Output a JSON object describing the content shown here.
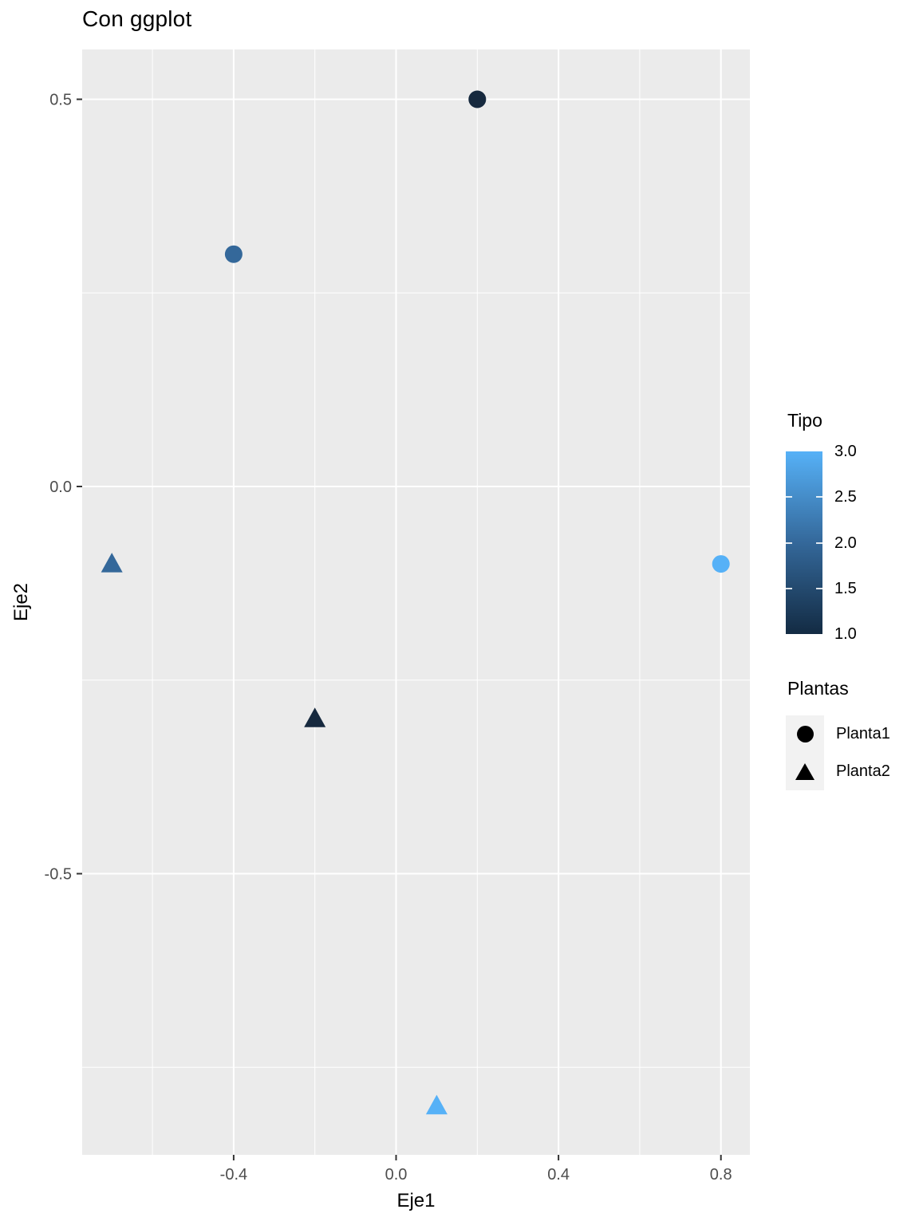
{
  "title": "Con ggplot",
  "axes": {
    "x_label": "Eje1",
    "y_label": "Eje2",
    "x_ticks": [
      -0.4,
      0.0,
      0.4,
      0.8
    ],
    "x_tick_labels": [
      "-0.4",
      "0.0",
      "0.4",
      "0.8"
    ],
    "y_ticks": [
      0.5,
      0.0,
      -0.5
    ],
    "y_tick_labels": [
      "0.5",
      "0.0",
      "-0.5"
    ],
    "x_minor_ticks": [
      -0.6,
      -0.2,
      0.2,
      0.6
    ],
    "y_minor_ticks": [
      0.25,
      -0.25,
      -0.75
    ]
  },
  "chart_data": {
    "type": "scatter",
    "title": "Con ggplot",
    "xlabel": "Eje1",
    "ylabel": "Eje2",
    "xlim": [
      -0.773,
      0.871
    ],
    "ylim": [
      -0.863,
      0.566
    ],
    "grid": "major and minor, white on gray panel",
    "legend_position": "right",
    "series": [
      {
        "name": "Planta1",
        "shape": "circle",
        "points": [
          {
            "x": 0.2,
            "y": 0.5,
            "tipo": 1
          },
          {
            "x": -0.4,
            "y": 0.3,
            "tipo": 2
          },
          {
            "x": 0.8,
            "y": -0.1,
            "tipo": 3
          }
        ]
      },
      {
        "name": "Planta2",
        "shape": "triangle",
        "points": [
          {
            "x": -0.2,
            "y": -0.3,
            "tipo": 1
          },
          {
            "x": -0.7,
            "y": -0.1,
            "tipo": 2
          },
          {
            "x": 0.1,
            "y": -0.8,
            "tipo": 3
          }
        ]
      }
    ],
    "color_scale": {
      "1": "#16293E",
      "2": "#34689A",
      "3": "#56B1F7"
    }
  },
  "legend_tipo": {
    "title": "Tipo",
    "labels": [
      "3.0",
      "2.5",
      "2.0",
      "1.5",
      "1.0"
    ],
    "values": [
      3.0,
      2.5,
      2.0,
      1.5,
      1.0
    ],
    "inner_tick_values": [
      2.5,
      2.0,
      1.5
    ],
    "range_min": 1.0,
    "range_max": 3.0,
    "gradient_top": "#56B1F7",
    "gradient_mid": "#34689A",
    "gradient_bottom": "#132B43"
  },
  "legend_plantas": {
    "title": "Plantas",
    "items": [
      {
        "label": "Planta1",
        "shape": "circle"
      },
      {
        "label": "Planta2",
        "shape": "triangle"
      }
    ],
    "key_color": "#000000",
    "key_bg": "#F2F2F2"
  },
  "colors": {
    "background": "#FFFFFF",
    "panel_bg": "#EBEBEB",
    "grid": "#FFFFFF",
    "tick_mark": "#333333",
    "tick_label": "#4D4D4D",
    "text": "#000000"
  }
}
